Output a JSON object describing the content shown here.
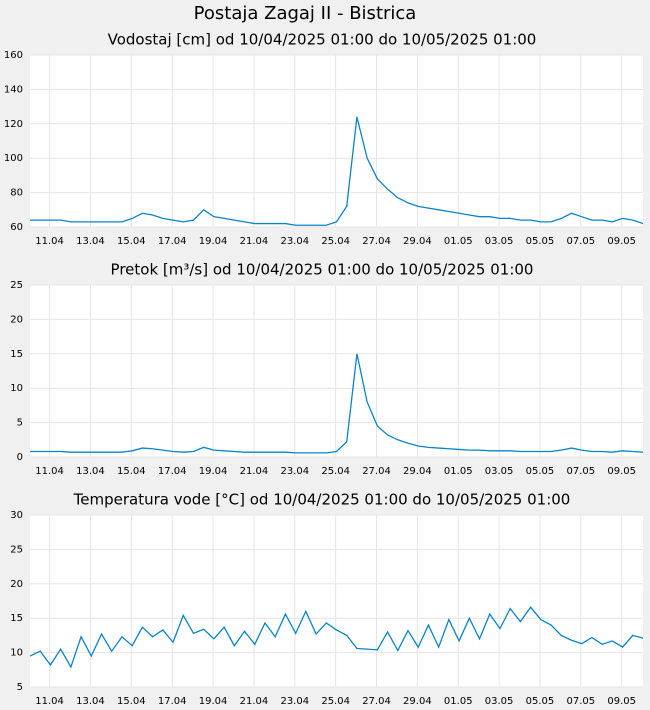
{
  "title": "Postaja Zagaj II - Bistrica",
  "chart_data": [
    {
      "type": "line",
      "title": "Vodostaj [cm] od 10/04/2025 01:00 do 10/05/2025 01:00",
      "x": [
        "2025-04-10T01:00",
        "2025-04-10T13:00",
        "2025-04-11T01:00",
        "2025-04-11T13:00",
        "2025-04-12T01:00",
        "2025-04-12T13:00",
        "2025-04-13T01:00",
        "2025-04-13T13:00",
        "2025-04-14T01:00",
        "2025-04-14T13:00",
        "2025-04-15T01:00",
        "2025-04-15T13:00",
        "2025-04-16T01:00",
        "2025-04-16T13:00",
        "2025-04-17T01:00",
        "2025-04-17T13:00",
        "2025-04-18T01:00",
        "2025-04-18T13:00",
        "2025-04-19T01:00",
        "2025-04-19T13:00",
        "2025-04-20T01:00",
        "2025-04-20T13:00",
        "2025-04-21T01:00",
        "2025-04-21T13:00",
        "2025-04-22T01:00",
        "2025-04-22T13:00",
        "2025-04-23T01:00",
        "2025-04-23T13:00",
        "2025-04-24T01:00",
        "2025-04-24T13:00",
        "2025-04-25T01:00",
        "2025-04-25T13:00",
        "2025-04-26T01:00",
        "2025-04-26T13:00",
        "2025-04-27T01:00",
        "2025-04-27T13:00",
        "2025-04-28T01:00",
        "2025-04-28T13:00",
        "2025-04-29T01:00",
        "2025-04-29T13:00",
        "2025-04-30T01:00",
        "2025-04-30T13:00",
        "2025-05-01T01:00",
        "2025-05-01T13:00",
        "2025-05-02T01:00",
        "2025-05-02T13:00",
        "2025-05-03T01:00",
        "2025-05-03T13:00",
        "2025-05-04T01:00",
        "2025-05-04T13:00",
        "2025-05-05T01:00",
        "2025-05-05T13:00",
        "2025-05-06T01:00",
        "2025-05-06T13:00",
        "2025-05-07T01:00",
        "2025-05-07T13:00",
        "2025-05-08T01:00",
        "2025-05-08T13:00",
        "2025-05-09T01:00",
        "2025-05-09T13:00",
        "2025-05-10T01:00"
      ],
      "series": [
        {
          "color": "#0a84cc",
          "values": [
            64,
            64,
            64,
            64,
            63,
            63,
            63,
            63,
            63,
            63,
            65,
            68,
            67,
            65,
            64,
            63,
            64,
            70,
            66,
            65,
            64,
            63,
            62,
            62,
            62,
            62,
            61,
            61,
            61,
            61,
            63,
            72,
            124,
            100,
            88,
            82,
            77,
            74,
            72,
            71,
            70,
            69,
            68,
            67,
            66,
            66,
            65,
            65,
            64,
            64,
            63,
            63,
            65,
            68,
            66,
            64,
            64,
            63,
            65,
            64,
            62
          ]
        }
      ],
      "xlim": [
        "2025-04-10T01:00",
        "2025-05-10T01:00"
      ],
      "xticks": [
        {
          "value": "2025-04-11T00:00",
          "label": "11.04"
        },
        {
          "value": "2025-04-13T00:00",
          "label": "13.04"
        },
        {
          "value": "2025-04-15T00:00",
          "label": "15.04"
        },
        {
          "value": "2025-04-17T00:00",
          "label": "17.04"
        },
        {
          "value": "2025-04-19T00:00",
          "label": "19.04"
        },
        {
          "value": "2025-04-21T00:00",
          "label": "21.04"
        },
        {
          "value": "2025-04-23T00:00",
          "label": "23.04"
        },
        {
          "value": "2025-04-25T00:00",
          "label": "25.04"
        },
        {
          "value": "2025-04-27T00:00",
          "label": "27.04"
        },
        {
          "value": "2025-04-29T00:00",
          "label": "29.04"
        },
        {
          "value": "2025-05-01T00:00",
          "label": "01.05"
        },
        {
          "value": "2025-05-03T00:00",
          "label": "03.05"
        },
        {
          "value": "2025-05-05T00:00",
          "label": "05.05"
        },
        {
          "value": "2025-05-07T00:00",
          "label": "07.05"
        },
        {
          "value": "2025-05-09T00:00",
          "label": "09.05"
        }
      ],
      "ylim": [
        60,
        160
      ],
      "yticks": [
        60,
        80,
        100,
        120,
        140,
        160
      ],
      "grid": true
    },
    {
      "type": "line",
      "title": "Pretok [m³/s] od 10/04/2025 01:00 do 10/05/2025 01:00",
      "x": [
        "2025-04-10T01:00",
        "2025-04-10T13:00",
        "2025-04-11T01:00",
        "2025-04-11T13:00",
        "2025-04-12T01:00",
        "2025-04-12T13:00",
        "2025-04-13T01:00",
        "2025-04-13T13:00",
        "2025-04-14T01:00",
        "2025-04-14T13:00",
        "2025-04-15T01:00",
        "2025-04-15T13:00",
        "2025-04-16T01:00",
        "2025-04-16T13:00",
        "2025-04-17T01:00",
        "2025-04-17T13:00",
        "2025-04-18T01:00",
        "2025-04-18T13:00",
        "2025-04-19T01:00",
        "2025-04-19T13:00",
        "2025-04-20T01:00",
        "2025-04-20T13:00",
        "2025-04-21T01:00",
        "2025-04-21T13:00",
        "2025-04-22T01:00",
        "2025-04-22T13:00",
        "2025-04-23T01:00",
        "2025-04-23T13:00",
        "2025-04-24T01:00",
        "2025-04-24T13:00",
        "2025-04-25T01:00",
        "2025-04-25T13:00",
        "2025-04-26T01:00",
        "2025-04-26T13:00",
        "2025-04-27T01:00",
        "2025-04-27T13:00",
        "2025-04-28T01:00",
        "2025-04-28T13:00",
        "2025-04-29T01:00",
        "2025-04-29T13:00",
        "2025-04-30T01:00",
        "2025-04-30T13:00",
        "2025-05-01T01:00",
        "2025-05-01T13:00",
        "2025-05-02T01:00",
        "2025-05-02T13:00",
        "2025-05-03T01:00",
        "2025-05-03T13:00",
        "2025-05-04T01:00",
        "2025-05-04T13:00",
        "2025-05-05T01:00",
        "2025-05-05T13:00",
        "2025-05-06T01:00",
        "2025-05-06T13:00",
        "2025-05-07T01:00",
        "2025-05-07T13:00",
        "2025-05-08T01:00",
        "2025-05-08T13:00",
        "2025-05-09T01:00",
        "2025-05-09T13:00",
        "2025-05-10T01:00"
      ],
      "series": [
        {
          "color": "#0a84cc",
          "values": [
            0.8,
            0.8,
            0.8,
            0.8,
            0.7,
            0.7,
            0.7,
            0.7,
            0.7,
            0.7,
            0.9,
            1.3,
            1.2,
            1.0,
            0.8,
            0.7,
            0.8,
            1.4,
            1.0,
            0.9,
            0.8,
            0.7,
            0.7,
            0.7,
            0.7,
            0.7,
            0.6,
            0.6,
            0.6,
            0.6,
            0.8,
            2.2,
            15,
            8,
            4.5,
            3.2,
            2.5,
            2.0,
            1.6,
            1.4,
            1.3,
            1.2,
            1.1,
            1.0,
            1.0,
            0.9,
            0.9,
            0.9,
            0.8,
            0.8,
            0.8,
            0.8,
            1.0,
            1.3,
            1.0,
            0.8,
            0.8,
            0.7,
            0.9,
            0.8,
            0.7
          ]
        }
      ],
      "xlim": [
        "2025-04-10T01:00",
        "2025-05-10T01:00"
      ],
      "xticks": [
        {
          "value": "2025-04-11T00:00",
          "label": "11.04"
        },
        {
          "value": "2025-04-13T00:00",
          "label": "13.04"
        },
        {
          "value": "2025-04-15T00:00",
          "label": "15.04"
        },
        {
          "value": "2025-04-17T00:00",
          "label": "17.04"
        },
        {
          "value": "2025-04-19T00:00",
          "label": "19.04"
        },
        {
          "value": "2025-04-21T00:00",
          "label": "21.04"
        },
        {
          "value": "2025-04-23T00:00",
          "label": "23.04"
        },
        {
          "value": "2025-04-25T00:00",
          "label": "25.04"
        },
        {
          "value": "2025-04-27T00:00",
          "label": "27.04"
        },
        {
          "value": "2025-04-29T00:00",
          "label": "29.04"
        },
        {
          "value": "2025-05-01T00:00",
          "label": "01.05"
        },
        {
          "value": "2025-05-03T00:00",
          "label": "03.05"
        },
        {
          "value": "2025-05-05T00:00",
          "label": "05.05"
        },
        {
          "value": "2025-05-07T00:00",
          "label": "07.05"
        },
        {
          "value": "2025-05-09T00:00",
          "label": "09.05"
        }
      ],
      "ylim": [
        0,
        25
      ],
      "yticks": [
        0,
        5,
        10,
        15,
        20,
        25
      ],
      "grid": true
    },
    {
      "type": "line",
      "title": "Temperatura vode [°C] od 10/04/2025 01:00 do 10/05/2025 01:00",
      "x": [
        "2025-04-10T01:00",
        "2025-04-10T13:00",
        "2025-04-11T01:00",
        "2025-04-11T13:00",
        "2025-04-12T01:00",
        "2025-04-12T13:00",
        "2025-04-13T01:00",
        "2025-04-13T13:00",
        "2025-04-14T01:00",
        "2025-04-14T13:00",
        "2025-04-15T01:00",
        "2025-04-15T13:00",
        "2025-04-16T01:00",
        "2025-04-16T13:00",
        "2025-04-17T01:00",
        "2025-04-17T13:00",
        "2025-04-18T01:00",
        "2025-04-18T13:00",
        "2025-04-19T01:00",
        "2025-04-19T13:00",
        "2025-04-20T01:00",
        "2025-04-20T13:00",
        "2025-04-21T01:00",
        "2025-04-21T13:00",
        "2025-04-22T01:00",
        "2025-04-22T13:00",
        "2025-04-23T01:00",
        "2025-04-23T13:00",
        "2025-04-24T01:00",
        "2025-04-24T13:00",
        "2025-04-25T01:00",
        "2025-04-25T13:00",
        "2025-04-26T01:00",
        "2025-04-26T13:00",
        "2025-04-27T01:00",
        "2025-04-27T13:00",
        "2025-04-28T01:00",
        "2025-04-28T13:00",
        "2025-04-29T01:00",
        "2025-04-29T13:00",
        "2025-04-30T01:00",
        "2025-04-30T13:00",
        "2025-05-01T01:00",
        "2025-05-01T13:00",
        "2025-05-02T01:00",
        "2025-05-02T13:00",
        "2025-05-03T01:00",
        "2025-05-03T13:00",
        "2025-05-04T01:00",
        "2025-05-04T13:00",
        "2025-05-05T01:00",
        "2025-05-05T13:00",
        "2025-05-06T01:00",
        "2025-05-06T13:00",
        "2025-05-07T01:00",
        "2025-05-07T13:00",
        "2025-05-08T01:00",
        "2025-05-08T13:00",
        "2025-05-09T01:00",
        "2025-05-09T13:00",
        "2025-05-10T01:00"
      ],
      "series": [
        {
          "color": "#0a84cc",
          "values": [
            9.5,
            10.2,
            8.2,
            10.5,
            7.9,
            12.3,
            9.5,
            12.7,
            10.2,
            12.3,
            11.0,
            13.7,
            12.3,
            13.3,
            11.5,
            15.4,
            12.8,
            13.4,
            12.0,
            13.7,
            11.0,
            13.1,
            11.2,
            14.3,
            12.3,
            15.6,
            12.8,
            16.0,
            12.7,
            14.3,
            13.3,
            12.5,
            10.6,
            10.5,
            10.4,
            13.0,
            10.3,
            13.2,
            10.8,
            14.0,
            10.8,
            14.8,
            11.7,
            15.0,
            12.0,
            15.6,
            13.5,
            16.4,
            14.5,
            16.6,
            14.8,
            14.0,
            12.5,
            11.8,
            11.3,
            12.2,
            11.2,
            11.7,
            10.8,
            12.5,
            12.1
          ]
        }
      ],
      "xlim": [
        "2025-04-10T01:00",
        "2025-05-10T01:00"
      ],
      "xticks": [
        {
          "value": "2025-04-11T00:00",
          "label": "11.04"
        },
        {
          "value": "2025-04-13T00:00",
          "label": "13.04"
        },
        {
          "value": "2025-04-15T00:00",
          "label": "15.04"
        },
        {
          "value": "2025-04-17T00:00",
          "label": "17.04"
        },
        {
          "value": "2025-04-19T00:00",
          "label": "19.04"
        },
        {
          "value": "2025-04-21T00:00",
          "label": "21.04"
        },
        {
          "value": "2025-04-23T00:00",
          "label": "23.04"
        },
        {
          "value": "2025-04-25T00:00",
          "label": "25.04"
        },
        {
          "value": "2025-04-27T00:00",
          "label": "27.04"
        },
        {
          "value": "2025-04-29T00:00",
          "label": "29.04"
        },
        {
          "value": "2025-05-01T00:00",
          "label": "01.05"
        },
        {
          "value": "2025-05-03T00:00",
          "label": "03.05"
        },
        {
          "value": "2025-05-05T00:00",
          "label": "05.05"
        },
        {
          "value": "2025-05-07T00:00",
          "label": "07.05"
        },
        {
          "value": "2025-05-09T00:00",
          "label": "09.05"
        }
      ],
      "ylim": [
        5,
        30
      ],
      "yticks": [
        5,
        10,
        15,
        20,
        25,
        30
      ],
      "grid": true
    }
  ]
}
